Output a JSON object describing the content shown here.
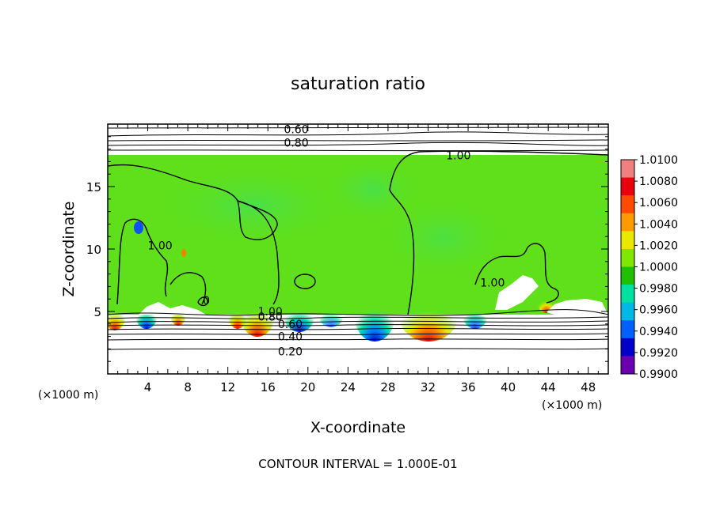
{
  "chart_data": {
    "type": "heatmap",
    "title": "saturation ratio",
    "xlabel": "X-coordinate",
    "ylabel": "Z-coordinate",
    "x_unit_label": "(×1000 m)",
    "z_unit_label": "(×1000 m)",
    "xlim": [
      0,
      50
    ],
    "ylim": [
      0,
      20
    ],
    "x_ticks": [
      4,
      8,
      12,
      16,
      20,
      24,
      28,
      32,
      36,
      40,
      44,
      48
    ],
    "y_ticks": [
      5,
      10,
      15
    ],
    "colorbar": {
      "levels": [
        1.01,
        1.008,
        1.006,
        1.004,
        1.002,
        1.0,
        0.998,
        0.996,
        0.994,
        0.992,
        0.99
      ],
      "labels": [
        "1.0100",
        "1.0080",
        "1.0060",
        "1.0040",
        "1.0020",
        "1.0000",
        "0.9980",
        "0.9960",
        "0.9940",
        "0.9920",
        "0.9900"
      ],
      "colors": [
        "#f08080",
        "#e8000b",
        "#ff4a00",
        "#ff9a00",
        "#e8e800",
        "#80e800",
        "#20c000",
        "#00e0a0",
        "#00b8e8",
        "#0060ff",
        "#0000c8",
        "#6a00b0"
      ]
    },
    "contour_labels": [
      {
        "text": "0.60",
        "x": 17.6,
        "z": 19.6
      },
      {
        "text": "0.80",
        "x": 17.6,
        "z": 18.5
      },
      {
        "text": "1.00",
        "x": 33.8,
        "z": 17.5
      },
      {
        "text": "1.00",
        "x": 4.0,
        "z": 10.3
      },
      {
        "text": "1.00",
        "x": 37.2,
        "z": 7.3
      },
      {
        "text": "0",
        "x": 9.5,
        "z": 5.9
      },
      {
        "text": "1.00",
        "x": 15.0,
        "z": 5.0
      },
      {
        "text": "0.80",
        "x": 15.0,
        "z": 4.6
      },
      {
        "text": "0.60",
        "x": 17.0,
        "z": 4.0
      },
      {
        "text": "0.40",
        "x": 17.0,
        "z": 3.0
      },
      {
        "text": "0.20",
        "x": 17.0,
        "z": 1.8
      }
    ],
    "footer": "CONTOUR INTERVAL = 1.000E-01"
  }
}
